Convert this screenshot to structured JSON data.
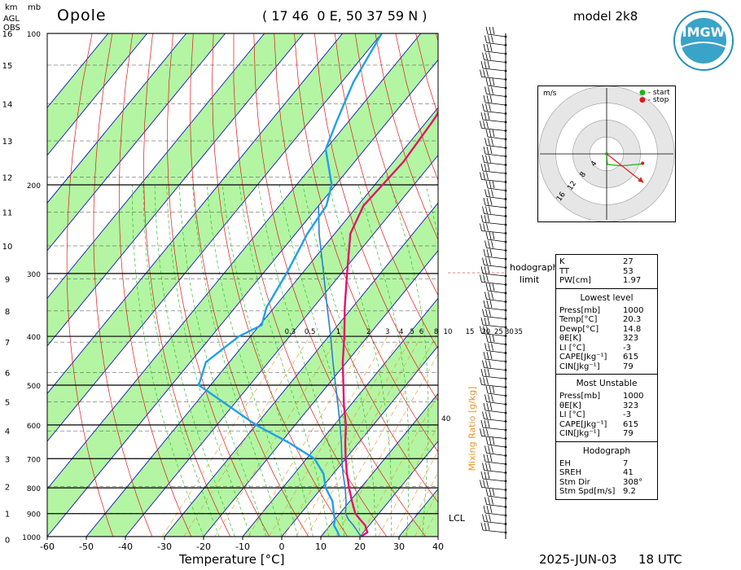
{
  "header": {
    "station": "Opole",
    "coords": "( 17 46  0 E, 50 37 59 N )",
    "model": "model 2k8",
    "logo_text": "IMGW",
    "unit_km": "km",
    "unit_mb": "mb",
    "agl": "AGL",
    "obs": "OBS"
  },
  "footer": {
    "xlabel": "Temperature [°C]",
    "date": "2025-JUN-03",
    "time": "18 UTC"
  },
  "hodograph": {
    "units": "m/s",
    "legend_start": "- start",
    "legend_stop": "- stop",
    "rings": [
      "4",
      "8",
      "12",
      "16"
    ],
    "limit_label_1": "hodograph",
    "limit_label_2": "limit"
  },
  "side_labels": {
    "lcl": "LCL",
    "mixing_ratio": "Mixing Ratio [g/kg]"
  },
  "stats": {
    "indices": [
      {
        "k": "K",
        "v": "27"
      },
      {
        "k": "TT",
        "v": "53"
      },
      {
        "k": "PW[cm]",
        "v": "1.97"
      }
    ],
    "lowest_title": "Lowest level",
    "lowest": [
      {
        "k": "Press[mb]",
        "v": "1000"
      },
      {
        "k": "Temp[°C]",
        "v": "20.3"
      },
      {
        "k": "Dewp[°C]",
        "v": "14.8"
      },
      {
        "k": "θE[K]",
        "v": "323"
      },
      {
        "k": "LI [°C]",
        "v": "-3"
      },
      {
        "k": "CAPE[Jkg⁻¹]",
        "v": "615"
      },
      {
        "k": "CIN[Jkg⁻¹]",
        "v": "79"
      }
    ],
    "unstable_title": "Most Unstable",
    "unstable": [
      {
        "k": "Press[mb]",
        "v": "1000"
      },
      {
        "k": "θE[K]",
        "v": "323"
      },
      {
        "k": "LI [°C]",
        "v": "-3"
      },
      {
        "k": "CAPE[Jkg⁻¹]",
        "v": "615"
      },
      {
        "k": "CIN[Jkg⁻¹]",
        "v": "79"
      }
    ],
    "hodo_title": "Hodograph",
    "hodo": [
      {
        "k": "EH",
        "v": "7"
      },
      {
        "k": "SREH",
        "v": "41"
      },
      {
        "k": "Stm Dir",
        "v": "308°"
      },
      {
        "k": "Stm Spd[m/s]",
        "v": "9.2"
      }
    ]
  },
  "colors": {
    "temperature": "#e0146e",
    "dewpoint": "#1fa0e8",
    "parcel": "#2b7fd0",
    "dry_band": "#b3f5a3",
    "isotherm": "#1414b4",
    "dry_adiabat": "#dd1a1a",
    "moist_adiabat": "#1db31d",
    "mixing_ratio": "#e69528"
  },
  "chart_data": {
    "type": "line",
    "title": "Opole",
    "xlabel": "Temperature [°C]",
    "ylabel": "mb",
    "xlim": [
      -60,
      40
    ],
    "ylim": [
      1000,
      100
    ],
    "pressure_ticks": [
      100,
      200,
      300,
      400,
      500,
      600,
      700,
      800,
      900,
      1000
    ],
    "temperature_ticks": [
      -60,
      -50,
      -40,
      -30,
      -20,
      -10,
      0,
      10,
      20,
      30,
      40
    ],
    "km_ticks": [
      0,
      1,
      2,
      3,
      4,
      5,
      6,
      7,
      8,
      9,
      10,
      11,
      12,
      13,
      14,
      15,
      16
    ],
    "mixing_ratio_labels": [
      "0.3",
      "0.5",
      "1",
      "2",
      "3",
      "4",
      "5",
      "6",
      "8",
      "10",
      "15",
      "20",
      "25",
      "30",
      "35",
      "40"
    ],
    "series": [
      {
        "name": "temperature",
        "points": [
          [
            1000,
            20.3
          ],
          [
            980,
            21
          ],
          [
            950,
            19
          ],
          [
            925,
            16.5
          ],
          [
            900,
            14
          ],
          [
            850,
            10.5
          ],
          [
            800,
            7
          ],
          [
            750,
            3.5
          ],
          [
            700,
            0
          ],
          [
            650,
            -3.5
          ],
          [
            600,
            -7
          ],
          [
            550,
            -11.5
          ],
          [
            500,
            -16
          ],
          [
            450,
            -21
          ],
          [
            400,
            -26
          ],
          [
            350,
            -32
          ],
          [
            300,
            -38.5
          ],
          [
            250,
            -46
          ],
          [
            220,
            -48.5
          ],
          [
            200,
            -48
          ],
          [
            180,
            -47.5
          ],
          [
            150,
            -48.5
          ],
          [
            125,
            -50
          ],
          [
            100,
            -50
          ]
        ]
      },
      {
        "name": "dewpoint",
        "points": [
          [
            1000,
            14.8
          ],
          [
            975,
            13
          ],
          [
            950,
            11
          ],
          [
            925,
            10
          ],
          [
            900,
            8.5
          ],
          [
            850,
            5.5
          ],
          [
            800,
            1
          ],
          [
            750,
            -2.5
          ],
          [
            700,
            -8
          ],
          [
            650,
            -18
          ],
          [
            600,
            -30
          ],
          [
            550,
            -41
          ],
          [
            500,
            -53
          ],
          [
            450,
            -56
          ],
          [
            400,
            -53
          ],
          [
            380,
            -49.5
          ],
          [
            350,
            -52
          ],
          [
            300,
            -54
          ],
          [
            250,
            -57
          ],
          [
            220,
            -58
          ],
          [
            200,
            -61
          ],
          [
            170,
            -70
          ],
          [
            150,
            -73
          ],
          [
            125,
            -77
          ],
          [
            100,
            -80
          ]
        ]
      },
      {
        "name": "parcel",
        "points": [
          [
            1000,
            20.3
          ],
          [
            950,
            16
          ],
          [
            925,
            13.5
          ],
          [
            900,
            11.5
          ],
          [
            850,
            9
          ],
          [
            800,
            6
          ],
          [
            750,
            2.5
          ],
          [
            700,
            -1
          ],
          [
            650,
            -4.5
          ],
          [
            600,
            -8.5
          ],
          [
            550,
            -13
          ],
          [
            500,
            -18
          ],
          [
            450,
            -23.5
          ],
          [
            400,
            -29.5
          ],
          [
            350,
            -36.5
          ],
          [
            300,
            -44.5
          ],
          [
            250,
            -54
          ],
          [
            220,
            -60
          ]
        ]
      }
    ],
    "hodograph_points": [
      [
        0,
        0
      ],
      [
        0.2,
        -2.5
      ],
      [
        3.5,
        -2.8
      ],
      [
        8,
        -2.4
      ],
      [
        8.5,
        -2.2
      ]
    ],
    "storm_motion_dir_deg": 308,
    "storm_motion_speed": 9.2,
    "lcl_pressure": 895
  }
}
